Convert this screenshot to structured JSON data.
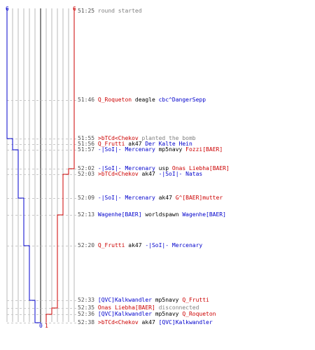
{
  "colors": {
    "team_a": "#0000cc",
    "team_b": "#cc0000",
    "neutral": "#808080",
    "text": "#000000",
    "grid": "#b8b8b8",
    "dash": "#c8c8c8",
    "center": "#606060",
    "timestamp": "#505050"
  },
  "score_labels": {
    "team_a_start": "6",
    "team_b_start": "6",
    "team_a_end": "0",
    "team_b_end": "1"
  },
  "events": [
    {
      "time": "51:25",
      "a": 6,
      "b": 6,
      "parts": [
        {
          "t": "round started",
          "c": "neutral"
        }
      ]
    },
    {
      "time": "51:46",
      "a": 6,
      "b": 6,
      "parts": [
        {
          "t": "Q_Roqueton",
          "c": "team_b"
        },
        {
          "t": " deagle ",
          "c": "text"
        },
        {
          "t": "cbc^DangerSepp",
          "c": "team_a"
        }
      ]
    },
    {
      "time": "51:55",
      "a": 5,
      "b": 6,
      "parts": [
        {
          "t": ">bTCd<Chekov",
          "c": "team_b"
        },
        {
          "t": " planted the bomb",
          "c": "neutral"
        }
      ]
    },
    {
      "time": "51:56",
      "a": 5,
      "b": 6,
      "parts": [
        {
          "t": "Q_Frutti",
          "c": "team_b"
        },
        {
          "t": " ak47 ",
          "c": "text"
        },
        {
          "t": "Der Kalte Hein",
          "c": "team_a"
        }
      ]
    },
    {
      "time": "51:57",
      "a": 4,
      "b": 6,
      "parts": [
        {
          "t": "-|SoI|- Mercenary",
          "c": "team_a"
        },
        {
          "t": " mp5navy ",
          "c": "text"
        },
        {
          "t": "Fozzi[BAER]",
          "c": "team_b"
        }
      ]
    },
    {
      "time": "52:02",
      "a": 4,
      "b": 5,
      "parts": [
        {
          "t": "-|SoI|- Mercenary",
          "c": "team_a"
        },
        {
          "t": " usp ",
          "c": "text"
        },
        {
          "t": "Onas Liebha[BAER]",
          "c": "team_b"
        }
      ]
    },
    {
      "time": "52:03",
      "a": 4,
      "b": 4,
      "parts": [
        {
          "t": ">bTCd<Chekov",
          "c": "team_b"
        },
        {
          "t": " ak47 ",
          "c": "text"
        },
        {
          "t": "-|SoI|- Natas",
          "c": "team_a"
        }
      ]
    },
    {
      "time": "52:09",
      "a": 3,
      "b": 4,
      "parts": [
        {
          "t": "-|SoI|- Mercenary",
          "c": "team_a"
        },
        {
          "t": " ak47 ",
          "c": "text"
        },
        {
          "t": "G^[BAER]mutter",
          "c": "team_b"
        }
      ]
    },
    {
      "time": "52:13",
      "a": 3,
      "b": 3,
      "parts": [
        {
          "t": "Wagenhe[BAER]",
          "c": "team_a"
        },
        {
          "t": " worldspawn ",
          "c": "text"
        },
        {
          "t": "Wagenhe[BAER]",
          "c": "team_a"
        }
      ]
    },
    {
      "time": "52:20",
      "a": 2,
      "b": 3,
      "parts": [
        {
          "t": "Q_Frutti",
          "c": "team_b"
        },
        {
          "t": " ak47 ",
          "c": "text"
        },
        {
          "t": "-|SoI|- Mercenary",
          "c": "team_a"
        }
      ]
    },
    {
      "time": "52:33",
      "a": 1,
      "b": 3,
      "parts": [
        {
          "t": "[QVC]Kalkwandler",
          "c": "team_a"
        },
        {
          "t": " mp5navy ",
          "c": "text"
        },
        {
          "t": "Q_Frutti",
          "c": "team_b"
        }
      ]
    },
    {
      "time": "52:35",
      "a": 1,
      "b": 2,
      "parts": [
        {
          "t": "Onas Liebha[BAER]",
          "c": "team_b"
        },
        {
          "t": " disconnected",
          "c": "neutral"
        }
      ]
    },
    {
      "time": "52:36",
      "a": 1,
      "b": 1,
      "parts": [
        {
          "t": "[QVC]Kalkwandler",
          "c": "team_a"
        },
        {
          "t": " mp5navy ",
          "c": "text"
        },
        {
          "t": "Q_Roqueton",
          "c": "team_b"
        }
      ]
    },
    {
      "time": "52:38",
      "a": 0,
      "b": 1,
      "parts": [
        {
          "t": ">bTCd<Chekov",
          "c": "team_b"
        },
        {
          "t": " ak47 ",
          "c": "text"
        },
        {
          "t": "[QVC]Kalkwandler",
          "c": "team_a"
        }
      ]
    }
  ]
}
